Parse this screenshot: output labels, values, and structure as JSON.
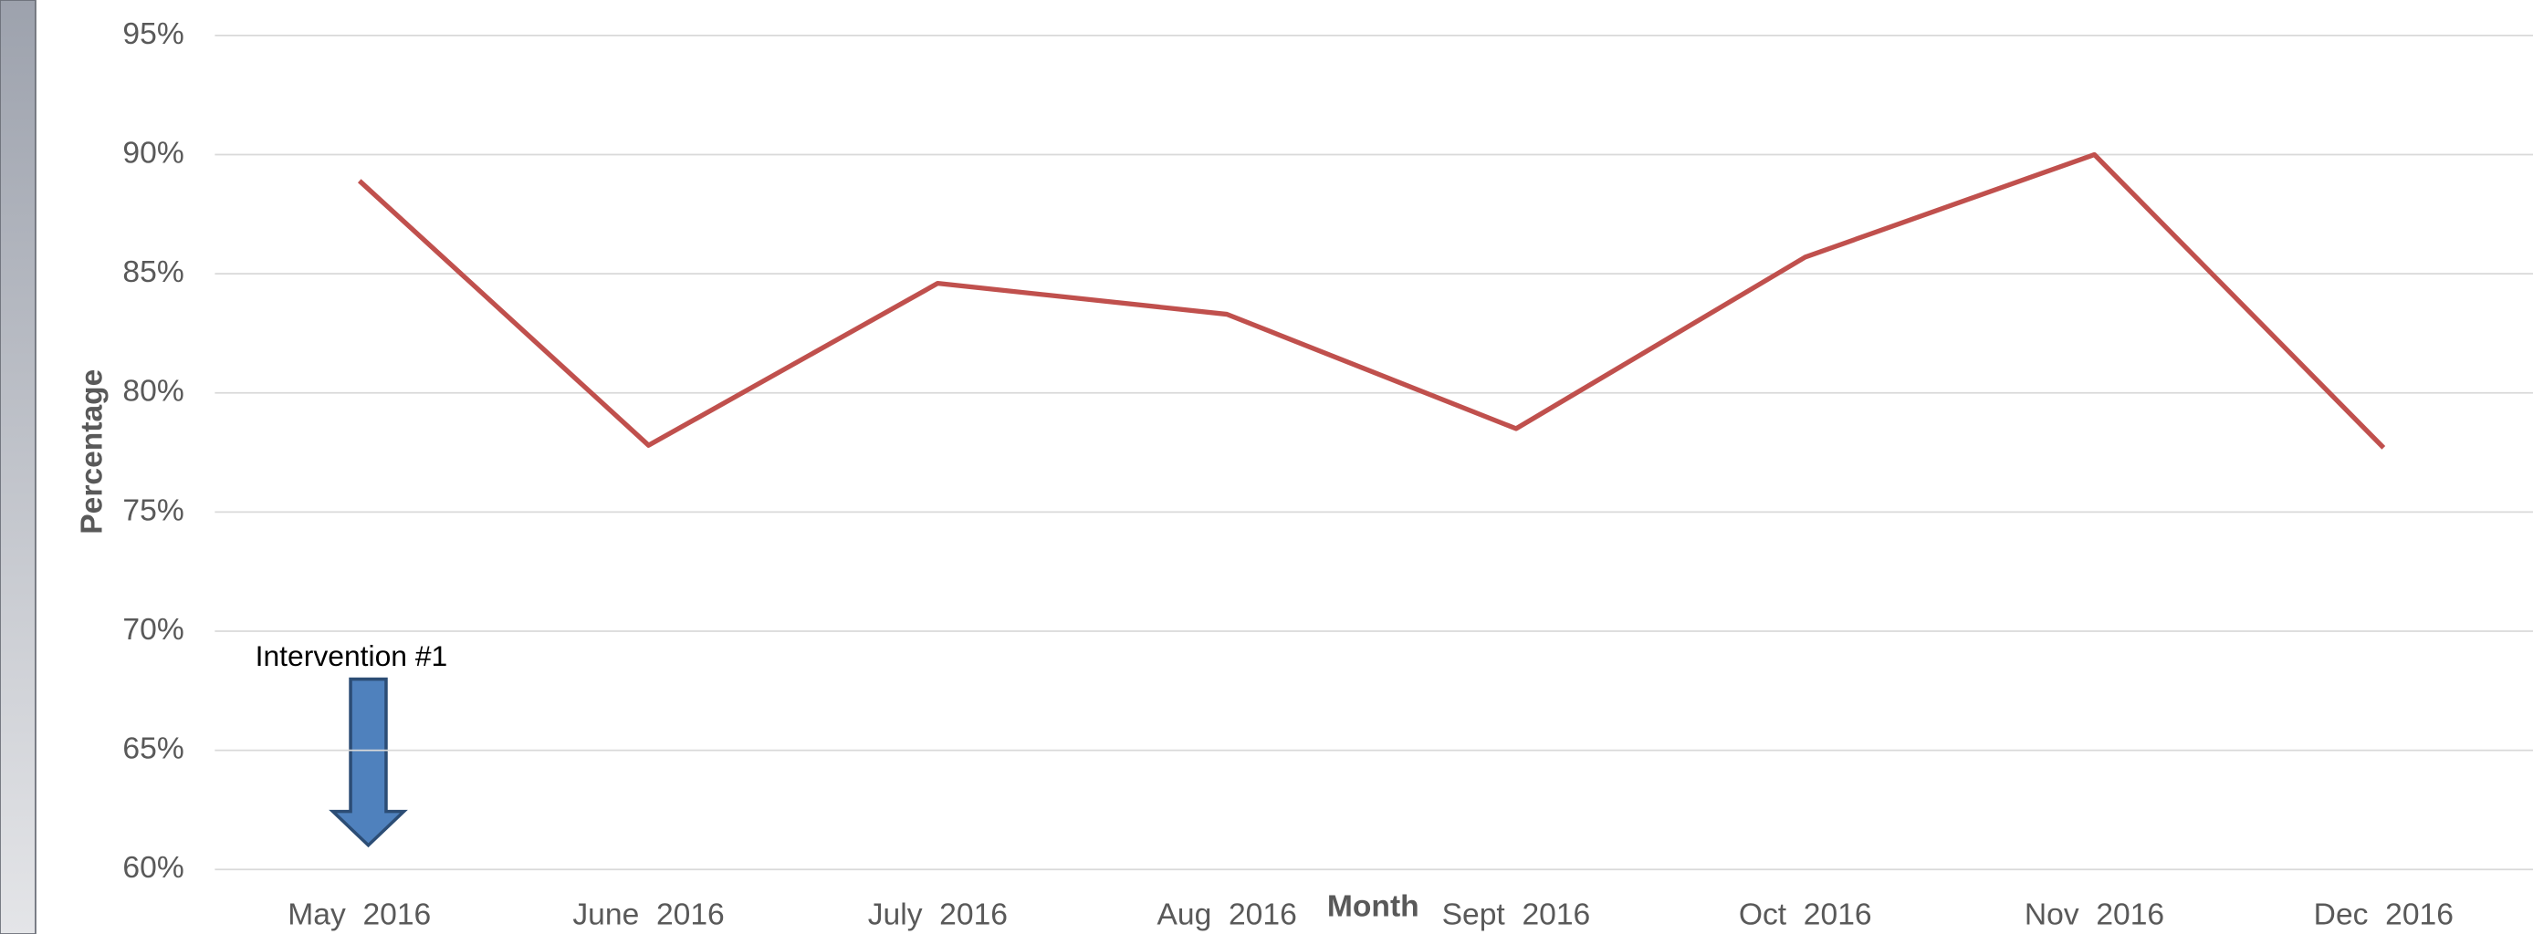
{
  "chart_data": {
    "type": "line",
    "xlabel": "Month",
    "ylabel": "Percentage",
    "annotations": [
      "Intervention #1"
    ],
    "categories": [
      "May  2016",
      "June  2016",
      "July  2016",
      "Aug  2016",
      "Sept  2016",
      "Oct  2016",
      "Nov  2016",
      "Dec  2016"
    ],
    "series": [
      {
        "name": "Percentage",
        "color": "#c0504d",
        "values": [
          88.9,
          77.8,
          84.6,
          83.3,
          78.5,
          85.7,
          90.0,
          77.7
        ]
      }
    ],
    "ylim": [
      60,
      95
    ],
    "yticks": [
      {
        "value": 60,
        "label": "60%"
      },
      {
        "value": 65,
        "label": "65%"
      },
      {
        "value": 70,
        "label": "70%"
      },
      {
        "value": 75,
        "label": "75%"
      },
      {
        "value": 80,
        "label": "80%"
      },
      {
        "value": 85,
        "label": "85%"
      },
      {
        "value": 90,
        "label": "90%"
      },
      {
        "value": 95,
        "label": "95%"
      }
    ],
    "grid": true
  }
}
